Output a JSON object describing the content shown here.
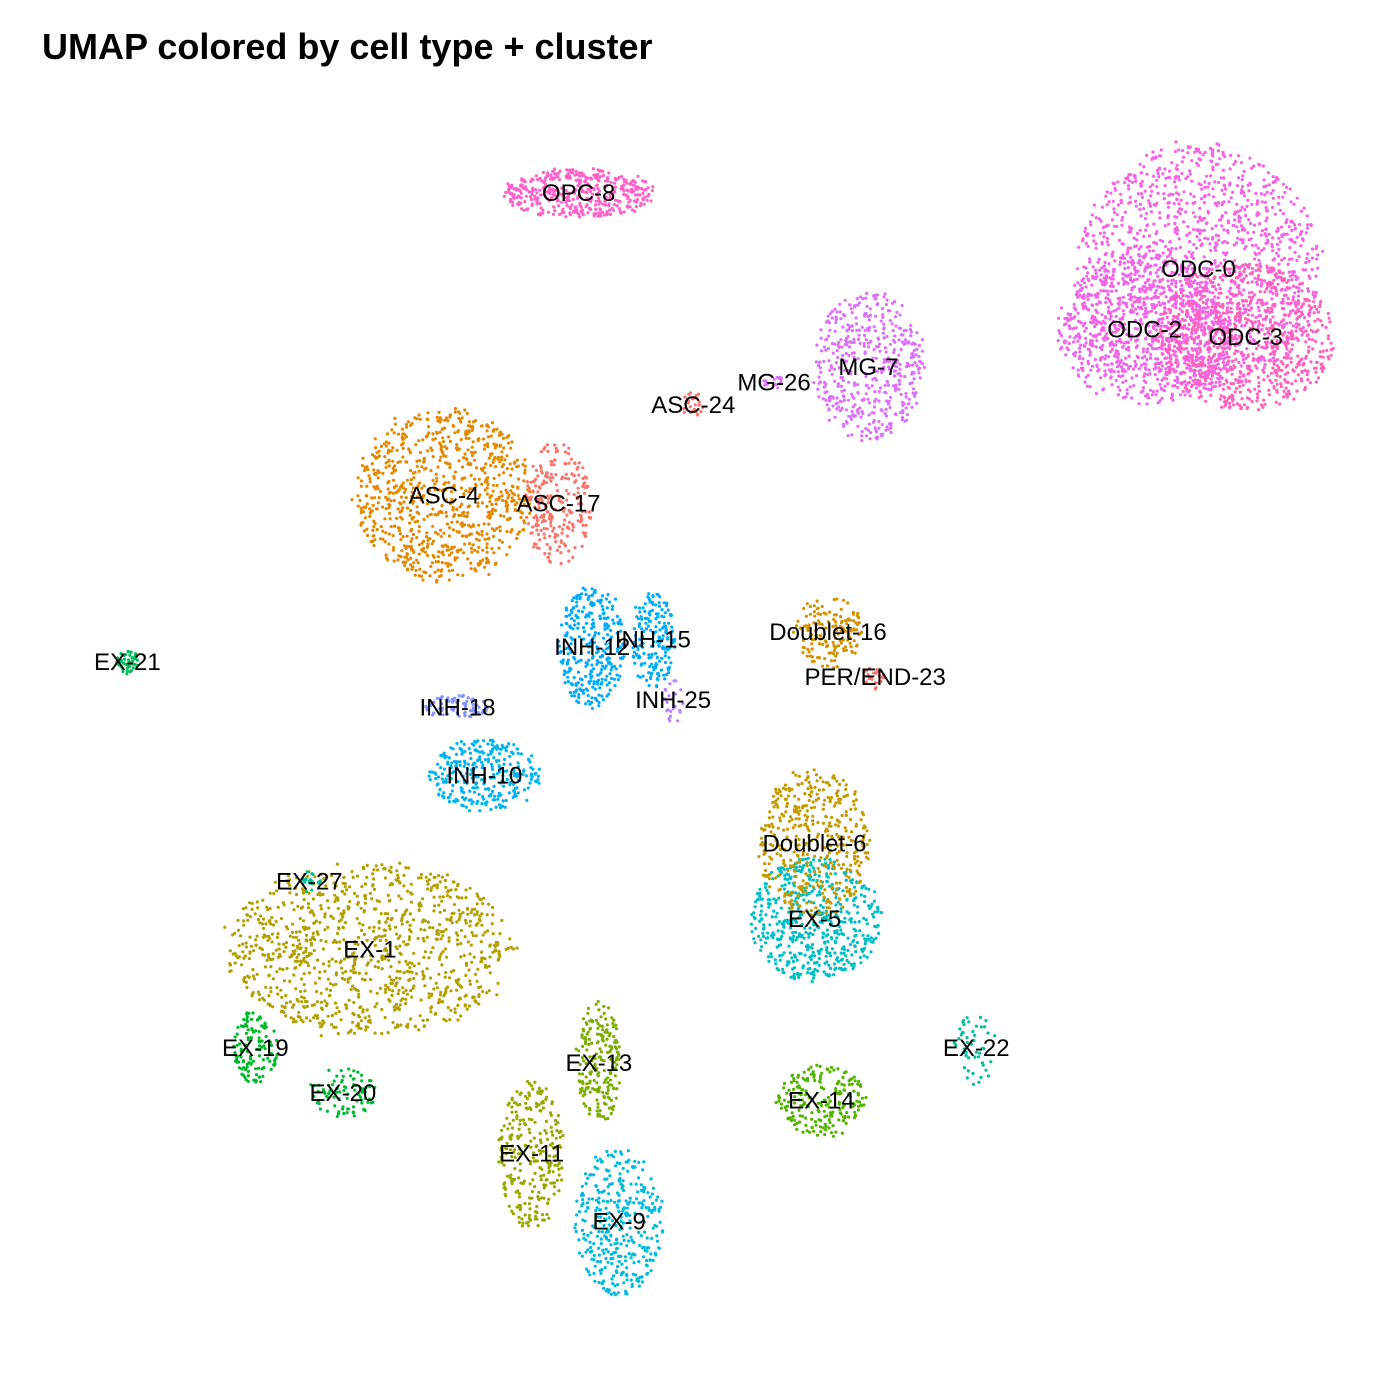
{
  "chart_data": {
    "type": "scatter",
    "title": "UMAP colored by cell type + cluster",
    "xlabel": "",
    "ylabel": "",
    "axes_visible": false,
    "grid": false,
    "legend": "none",
    "clusters": [
      {
        "label": "ODC-0",
        "color": "#F564E3",
        "centroid": [
          8.1,
          6.9
        ],
        "spread": [
          1.1,
          1.0
        ],
        "size": 2400
      },
      {
        "label": "EX-1",
        "color": "#B3A000",
        "centroid": [
          -4.2,
          -2.1
        ],
        "spread": [
          1.3,
          0.7
        ],
        "size": 1700
      },
      {
        "label": "ODC-2",
        "color": "#F066EA",
        "centroid": [
          7.3,
          6.1
        ],
        "spread": [
          0.8,
          0.6
        ],
        "size": 1200
      },
      {
        "label": "ODC-3",
        "color": "#FF62BC",
        "centroid": [
          8.8,
          6.0
        ],
        "spread": [
          0.8,
          0.6
        ],
        "size": 1200
      },
      {
        "label": "ASC-4",
        "color": "#E38900",
        "centroid": [
          -3.1,
          3.9
        ],
        "spread": [
          0.8,
          0.7
        ],
        "size": 1400
      },
      {
        "label": "EX-5",
        "color": "#00BFC4",
        "centroid": [
          2.4,
          -1.7
        ],
        "spread": [
          0.6,
          0.5
        ],
        "size": 900
      },
      {
        "label": "Doublet-6",
        "color": "#C49A00",
        "centroid": [
          2.4,
          -0.7
        ],
        "spread": [
          0.5,
          0.6
        ],
        "size": 700
      },
      {
        "label": "MG-7",
        "color": "#DC71FA",
        "centroid": [
          3.2,
          5.6
        ],
        "spread": [
          0.5,
          0.6
        ],
        "size": 800
      },
      {
        "label": "OPC-8",
        "color": "#FF61C9",
        "centroid": [
          -1.1,
          7.9
        ],
        "spread": [
          0.7,
          0.2
        ],
        "size": 700
      },
      {
        "label": "EX-9",
        "color": "#00BBDB",
        "centroid": [
          -0.5,
          -5.7
        ],
        "spread": [
          0.4,
          0.6
        ],
        "size": 600
      },
      {
        "label": "INH-10",
        "color": "#00B4EF",
        "centroid": [
          -2.5,
          0.2
        ],
        "spread": [
          0.5,
          0.3
        ],
        "size": 500
      },
      {
        "label": "EX-11",
        "color": "#99A800",
        "centroid": [
          -1.8,
          -4.8
        ],
        "spread": [
          0.3,
          0.6
        ],
        "size": 450
      },
      {
        "label": "INH-12",
        "color": "#00ABFD",
        "centroid": [
          -0.9,
          1.9
        ],
        "spread": [
          0.3,
          0.5
        ],
        "size": 500
      },
      {
        "label": "EX-13",
        "color": "#7CAE00",
        "centroid": [
          -0.8,
          -3.6
        ],
        "spread": [
          0.2,
          0.5
        ],
        "size": 350
      },
      {
        "label": "EX-14",
        "color": "#53B400",
        "centroid": [
          2.5,
          -4.1
        ],
        "spread": [
          0.4,
          0.3
        ],
        "size": 350
      },
      {
        "label": "INH-15",
        "color": "#00ADFA",
        "centroid": [
          0.0,
          2.0
        ],
        "spread": [
          0.2,
          0.4
        ],
        "size": 300
      },
      {
        "label": "Doublet-16",
        "color": "#D39200",
        "centroid": [
          2.6,
          2.1
        ],
        "spread": [
          0.3,
          0.3
        ],
        "size": 250
      },
      {
        "label": "ASC-17",
        "color": "#F8766D",
        "centroid": [
          -1.4,
          3.8
        ],
        "spread": [
          0.3,
          0.5
        ],
        "size": 400
      },
      {
        "label": "INH-18",
        "color": "#8494FF",
        "centroid": [
          -2.9,
          1.1
        ],
        "spread": [
          0.3,
          0.1
        ],
        "size": 120
      },
      {
        "label": "EX-19",
        "color": "#00B929",
        "centroid": [
          -5.9,
          -3.4
        ],
        "spread": [
          0.2,
          0.3
        ],
        "size": 200
      },
      {
        "label": "EX-20",
        "color": "#00BA38",
        "centroid": [
          -4.6,
          -4.0
        ],
        "spread": [
          0.3,
          0.2
        ],
        "size": 150
      },
      {
        "label": "EX-21",
        "color": "#00BC5A",
        "centroid": [
          -7.8,
          1.7
        ],
        "spread": [
          0.1,
          0.1
        ],
        "size": 80
      },
      {
        "label": "EX-22",
        "color": "#00BFA0",
        "centroid": [
          4.8,
          -3.4
        ],
        "spread": [
          0.2,
          0.3
        ],
        "size": 80
      },
      {
        "label": "PER/END-23",
        "color": "#F8766D",
        "centroid": [
          3.3,
          1.5
        ],
        "spread": [
          0.1,
          0.1
        ],
        "size": 40
      },
      {
        "label": "ASC-24",
        "color": "#F8766D",
        "centroid": [
          0.6,
          5.1
        ],
        "spread": [
          0.1,
          0.1
        ],
        "size": 40
      },
      {
        "label": "INH-25",
        "color": "#B983FF",
        "centroid": [
          0.3,
          1.2
        ],
        "spread": [
          0.1,
          0.2
        ],
        "size": 40
      },
      {
        "label": "MG-26",
        "color": "#DC71FA",
        "centroid": [
          1.8,
          5.4
        ],
        "spread": [
          0.1,
          0.05
        ],
        "size": 30
      },
      {
        "label": "EX-27",
        "color": "#00C19A",
        "centroid": [
          -5.1,
          -1.2
        ],
        "spread": [
          0.1,
          0.1
        ],
        "size": 30
      }
    ],
    "xlim": [
      -8.8,
      10.2
    ],
    "ylim": [
      -7.0,
      9.0
    ]
  }
}
